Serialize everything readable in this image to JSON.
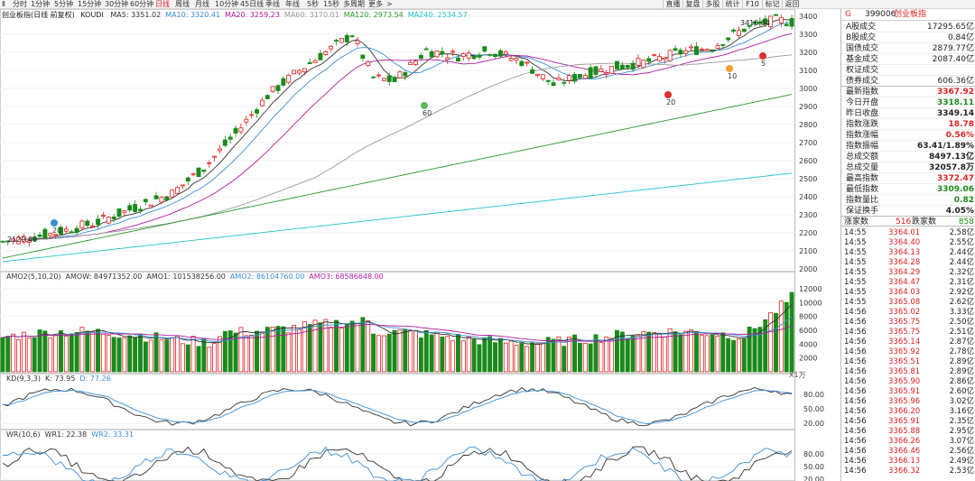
{
  "toolbar": {
    "collapse_label": "Ⅱ",
    "timeframes": [
      "分时",
      "1分钟",
      "5分钟",
      "15分钟",
      "30分钟",
      "60分钟",
      "日线",
      "周线",
      "月线",
      "10分钟",
      "45日线",
      "季线",
      "年线",
      "5秒",
      "15秒",
      "多周期",
      "更多"
    ],
    "active_timeframe": "日线",
    "buttons": [
      "直播",
      "复盘",
      "多股",
      "统计",
      "F10",
      "标记",
      "返回"
    ]
  },
  "main_chart": {
    "title": "创业板指(日线 前复权)",
    "indicator": "KOUDI",
    "legend": [
      {
        "label": "MA5: 3351.02",
        "color": "#333333"
      },
      {
        "label": "MA10: 3320.41",
        "color": "#3a8fd8"
      },
      {
        "label": "MA20: 3259.23",
        "color": "#b01aa0"
      },
      {
        "label": "MA60: 3170.01",
        "color": "#999999"
      },
      {
        "label": "MA120: 2973.54",
        "color": "#2a9a2a"
      },
      {
        "label": "MA240: 2534.57",
        "color": "#22c2d2"
      }
    ],
    "y_ticks": [
      "3400",
      "3300",
      "3200",
      "3100",
      "3000",
      "2900",
      "2800",
      "2700",
      "2600",
      "2500",
      "2400",
      "2300",
      "2200",
      "2100",
      "2000"
    ],
    "high_label": "3416.84",
    "low_label": "2129.49",
    "markers": [
      {
        "label": "20",
        "color": "#3a8fd8"
      },
      {
        "label": "60",
        "color": "#5cb85c"
      },
      {
        "label": "20",
        "color": "#e03030"
      },
      {
        "label": "10",
        "color": "#f0a030"
      },
      {
        "label": "5",
        "color": "#e03030"
      }
    ]
  },
  "volume_chart": {
    "legend": [
      {
        "label": "AMO2(5,10,20)",
        "color": "#333333"
      },
      {
        "label": "AMOW: 84971352.00",
        "color": "#333333"
      },
      {
        "label": "AMO1: 101538256.00",
        "color": "#333333"
      },
      {
        "label": "AMO2: 86104760.00",
        "color": "#3a8fd8"
      },
      {
        "label": "AMO3: 68586648.00",
        "color": "#b01aa0"
      }
    ],
    "y_ticks": [
      "12000",
      "10000",
      "8000",
      "6000",
      "4000",
      "2000"
    ],
    "unit": "X1万"
  },
  "kd_chart": {
    "legend": [
      {
        "label": "KD(9,3,3)",
        "color": "#333333"
      },
      {
        "label": "K: 73.95",
        "color": "#333333"
      },
      {
        "label": "D: 77.26",
        "color": "#3a8fd8"
      }
    ],
    "y_ticks": [
      "80.00",
      "50.00",
      "20.00"
    ]
  },
  "wr_chart": {
    "legend": [
      {
        "label": "WR(10,6)",
        "color": "#333333"
      },
      {
        "label": "WR1: 22.38",
        "color": "#333333"
      },
      {
        "label": "WR2: 33.31",
        "color": "#3a8fd8"
      }
    ],
    "y_ticks": [
      "80.00",
      "50.00",
      "20.00"
    ]
  },
  "quote_panel": {
    "code": "399006",
    "name": "创业板指",
    "badge": "G",
    "stats": [
      {
        "label": "A股成交",
        "value": "17295.65亿",
        "color": "#222222"
      },
      {
        "label": "B股成交",
        "value": "0.84亿",
        "color": "#222222"
      },
      {
        "label": "国债成交",
        "value": "2879.77亿",
        "color": "#222222"
      },
      {
        "label": "基金成交",
        "value": "2087.40亿",
        "color": "#222222"
      },
      {
        "label": "权证成交",
        "value": "",
        "color": "#222222"
      },
      {
        "label": "债券成交",
        "value": "606.36亿",
        "color": "#222222"
      },
      {
        "label": "最新指数",
        "value": "3367.92",
        "color": "#e02020"
      },
      {
        "label": "今日开盘",
        "value": "3318.11",
        "color": "#1a8a1a"
      },
      {
        "label": "昨日收盘",
        "value": "3349.14",
        "color": "#222222"
      },
      {
        "label": "指数涨跌",
        "value": "18.78",
        "color": "#e02020"
      },
      {
        "label": "指数涨幅",
        "value": "0.56%",
        "color": "#e02020"
      },
      {
        "label": "指数振幅",
        "value": "63.41/1.89%",
        "color": "#222222"
      },
      {
        "label": "总成交额",
        "value": "8497.13亿",
        "color": "#222222"
      },
      {
        "label": "总成交量",
        "value": "32057.8万",
        "color": "#222222"
      },
      {
        "label": "最高指数",
        "value": "3372.47",
        "color": "#e02020"
      },
      {
        "label": "最低指数",
        "value": "3309.06",
        "color": "#1a8a1a"
      },
      {
        "label": "指数量比",
        "value": "0.82",
        "color": "#1a8a1a"
      },
      {
        "label": "保证换手",
        "value": "4.05%",
        "color": "#222222"
      }
    ],
    "updown": {
      "up_label": "涨家数",
      "up_value": "516",
      "down_label": "跌家数",
      "down_value": "858"
    },
    "ticks": [
      {
        "time": "14:55",
        "price": "3364.01",
        "vol": "2.58亿"
      },
      {
        "time": "14:55",
        "price": "3364.40",
        "vol": "2.55亿"
      },
      {
        "time": "14:55",
        "price": "3364.13",
        "vol": "2.44亿"
      },
      {
        "time": "14:55",
        "price": "3364.28",
        "vol": "2.44亿"
      },
      {
        "time": "14:55",
        "price": "3364.29",
        "vol": "2.32亿"
      },
      {
        "time": "14:55",
        "price": "3364.47",
        "vol": "2.31亿"
      },
      {
        "time": "14:55",
        "price": "3364.03",
        "vol": "2.92亿"
      },
      {
        "time": "14:55",
        "price": "3365.08",
        "vol": "2.62亿"
      },
      {
        "time": "14:56",
        "price": "3365.02",
        "vol": "3.33亿"
      },
      {
        "time": "14:56",
        "price": "3365.75",
        "vol": "2.50亿"
      },
      {
        "time": "14:56",
        "price": "3365.75",
        "vol": "2.51亿"
      },
      {
        "time": "14:56",
        "price": "3365.14",
        "vol": "2.87亿"
      },
      {
        "time": "14:56",
        "price": "3365.92",
        "vol": "2.78亿"
      },
      {
        "time": "14:56",
        "price": "3365.51",
        "vol": "2.89亿"
      },
      {
        "time": "14:56",
        "price": "3365.81",
        "vol": "2.89亿"
      },
      {
        "time": "14:56",
        "price": "3365.90",
        "vol": "2.86亿"
      },
      {
        "time": "14:56",
        "price": "3365.91",
        "vol": "2.60亿"
      },
      {
        "time": "14:56",
        "price": "3365.96",
        "vol": "3.02亿"
      },
      {
        "time": "14:56",
        "price": "3366.20",
        "vol": "3.16亿"
      },
      {
        "time": "14:56",
        "price": "3365.91",
        "vol": "2.35亿"
      },
      {
        "time": "14:56",
        "price": "3365.88",
        "vol": "2.95亿"
      },
      {
        "time": "14:56",
        "price": "3366.26",
        "vol": "3.07亿"
      },
      {
        "time": "14:56",
        "price": "3366.46",
        "vol": "2.56亿"
      },
      {
        "time": "14:56",
        "price": "3366.13",
        "vol": "2.49亿"
      },
      {
        "time": "14:56",
        "price": "3366.32",
        "vol": "2.53亿"
      }
    ]
  },
  "colors": {
    "up": "#e02020",
    "down": "#1a8a1a",
    "grid": "#e6e6e6"
  }
}
